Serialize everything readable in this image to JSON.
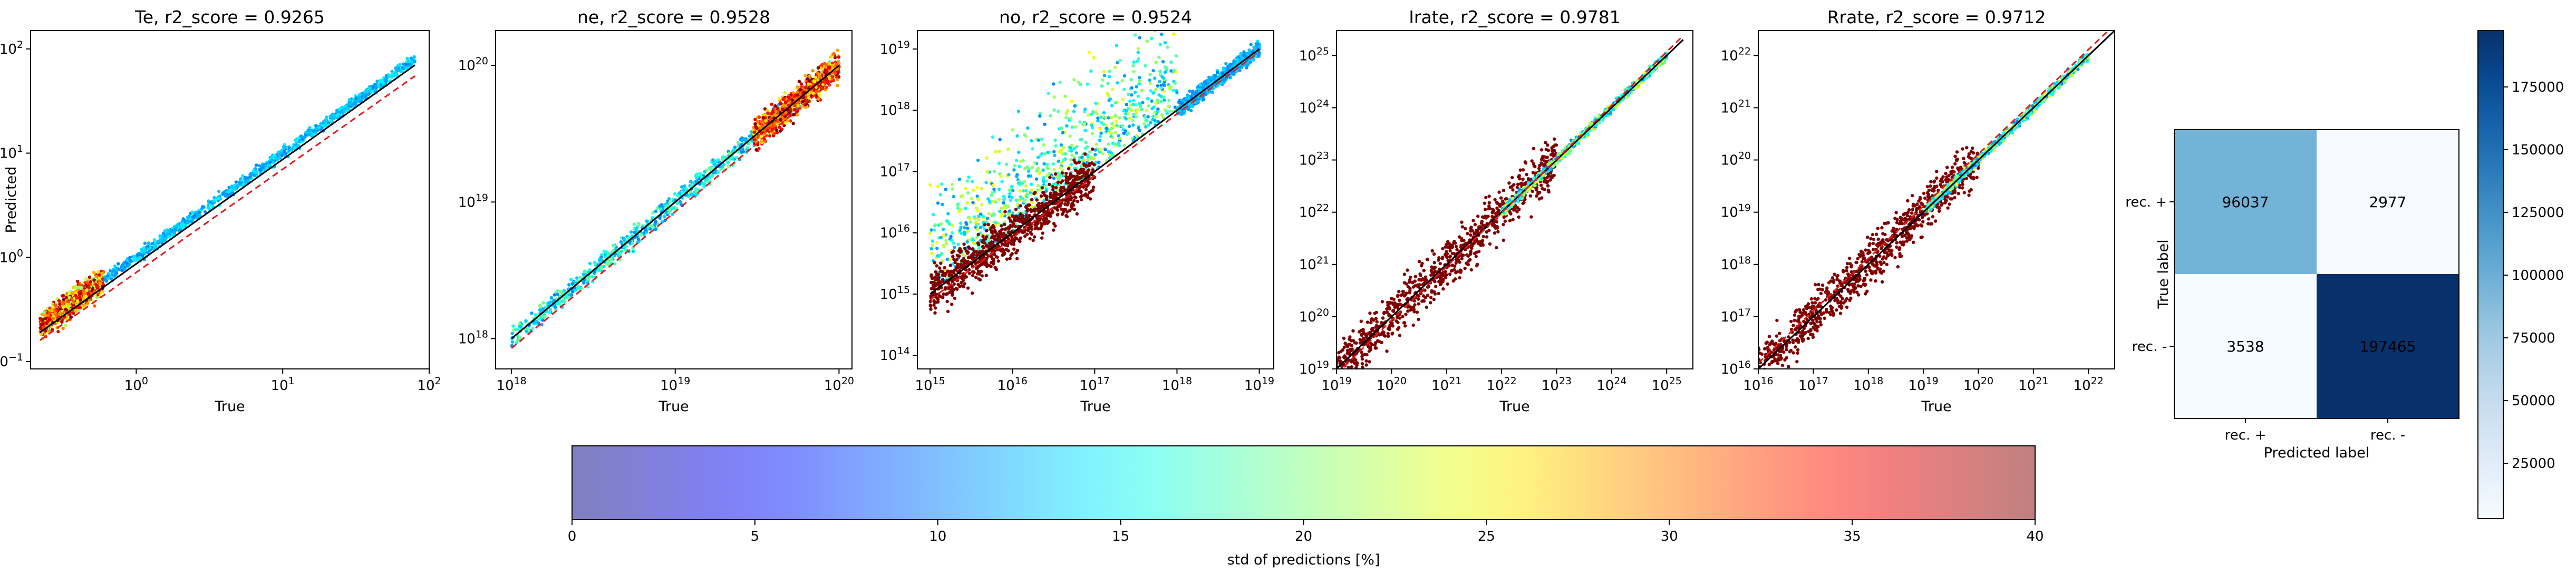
{
  "figure": {
    "colorbar_label": "std of predictions [%]",
    "colorbar_ticks": [
      "0",
      "5",
      "10",
      "15",
      "20",
      "25",
      "30",
      "35",
      "40"
    ],
    "colorbar_range": [
      0,
      40
    ],
    "colormap": "jet",
    "colormap_alpha": 0.5
  },
  "chart_data": [
    {
      "type": "scatter",
      "title": "Te, r2_score = 0.9265",
      "xlabel": "True",
      "ylabel": "Predicted",
      "xscale": "log",
      "yscale": "log",
      "xlim": [
        0.19,
        100
      ],
      "ylim": [
        0.085,
        150
      ],
      "x_ticks": [
        {
          "base": "10",
          "exp": "0",
          "value": 1
        },
        {
          "base": "10",
          "exp": "1",
          "value": 10
        },
        {
          "base": "10",
          "exp": "2",
          "value": 100
        }
      ],
      "y_ticks": [
        {
          "base": "10",
          "exp": "−1",
          "value": 0.1
        },
        {
          "base": "10",
          "exp": "0",
          "value": 1
        },
        {
          "base": "10",
          "exp": "1",
          "value": 10
        },
        {
          "base": "10",
          "exp": "2",
          "value": 100
        }
      ],
      "identity_line": {
        "from": [
          0.22,
          0.19
        ],
        "to": [
          80,
          70
        ],
        "color": "#000000"
      },
      "offset_line": {
        "from": [
          0.22,
          0.16
        ],
        "to": [
          80,
          55
        ],
        "color": "#e31a1c"
      },
      "cloud": [
        {
          "x_range": [
            0.22,
            0.6
          ],
          "log_spread": 0.12,
          "std_range": [
            20,
            40
          ]
        },
        {
          "x_range": [
            0.6,
            80
          ],
          "log_spread": 0.05,
          "std_range": [
            10,
            15
          ]
        }
      ]
    },
    {
      "type": "scatter",
      "title": "ne, r2_score = 0.9528",
      "xlabel": "True",
      "ylabel": "",
      "xscale": "log",
      "yscale": "log",
      "xlim": [
        8e+17,
        1.2e+20
      ],
      "ylim": [
        6e+17,
        1.8e+20
      ],
      "x_ticks": [
        {
          "base": "10",
          "exp": "18",
          "value": 1e+18
        },
        {
          "base": "10",
          "exp": "19",
          "value": 1e+19
        },
        {
          "base": "10",
          "exp": "20",
          "value": 1e+20
        }
      ],
      "y_ticks": [
        {
          "base": "10",
          "exp": "18",
          "value": 1e+18
        },
        {
          "base": "10",
          "exp": "19",
          "value": 1e+19
        },
        {
          "base": "10",
          "exp": "20",
          "value": 1e+20
        }
      ],
      "identity_line": {
        "from": [
          1e+18,
          1e+18
        ],
        "to": [
          1e+20,
          1e+20
        ],
        "color": "#000000"
      },
      "offset_line": {
        "from": [
          1e+18,
          8.5e+17
        ],
        "to": [
          1e+20,
          8.5e+19
        ],
        "color": "#e31a1c"
      },
      "cloud": [
        {
          "x_range": [
            1e+18,
            1e+20
          ],
          "log_spread": 0.07,
          "std_range": [
            10,
            20
          ]
        },
        {
          "x_range": [
            3e+19,
            1e+20
          ],
          "log_spread": 0.1,
          "std_range": [
            25,
            40
          ]
        }
      ]
    },
    {
      "type": "scatter",
      "title": "no, r2_score = 0.9524",
      "xlabel": "True",
      "ylabel": "",
      "xscale": "log",
      "yscale": "log",
      "xlim": [
        700000000000000.0,
        1.5e+19
      ],
      "ylim": [
        60000000000000.0,
        2e+19
      ],
      "x_ticks": [
        {
          "base": "10",
          "exp": "15",
          "value": 1000000000000000.0
        },
        {
          "base": "10",
          "exp": "16",
          "value": 1e+16
        },
        {
          "base": "10",
          "exp": "17",
          "value": 1e+17
        },
        {
          "base": "10",
          "exp": "18",
          "value": 1e+18
        },
        {
          "base": "10",
          "exp": "19",
          "value": 1e+19
        }
      ],
      "y_ticks": [
        {
          "base": "10",
          "exp": "14",
          "value": 100000000000000.0
        },
        {
          "base": "10",
          "exp": "15",
          "value": 1000000000000000.0
        },
        {
          "base": "10",
          "exp": "16",
          "value": 1e+16
        },
        {
          "base": "10",
          "exp": "17",
          "value": 1e+17
        },
        {
          "base": "10",
          "exp": "18",
          "value": 1e+18
        },
        {
          "base": "10",
          "exp": "19",
          "value": 1e+19
        }
      ],
      "identity_line": {
        "from": [
          1000000000000000.0,
          1000000000000000.0
        ],
        "to": [
          1e+19,
          1e+19
        ],
        "color": "#000000"
      },
      "offset_line": {
        "from": [
          1000000000000000.0,
          800000000000000.0
        ],
        "to": [
          1e+19,
          9e+18
        ],
        "color": "#e31a1c"
      },
      "cloud": [
        {
          "x_range": [
            1000000000000000.0,
            1e+18
          ],
          "log_spread": 0.9,
          "std_range": [
            10,
            25
          ],
          "upper_only": true
        },
        {
          "x_range": [
            1000000000000000.0,
            1e+17
          ],
          "log_spread": 0.35,
          "std_range": [
            38,
            40
          ]
        },
        {
          "x_range": [
            1e+18,
            1e+19
          ],
          "log_spread": 0.12,
          "std_range": [
            10,
            14
          ]
        }
      ]
    },
    {
      "type": "scatter",
      "title": "Irate, r2_score = 0.9781",
      "xlabel": "True",
      "ylabel": "",
      "xscale": "log",
      "yscale": "log",
      "xlim": [
        1e+19,
        3e+25
      ],
      "ylim": [
        1e+19,
        3e+25
      ],
      "x_ticks": [
        {
          "base": "10",
          "exp": "19",
          "value": 1e+19
        },
        {
          "base": "10",
          "exp": "20",
          "value": 1e+20
        },
        {
          "base": "10",
          "exp": "21",
          "value": 1e+21
        },
        {
          "base": "10",
          "exp": "22",
          "value": 1e+22
        },
        {
          "base": "10",
          "exp": "23",
          "value": 1e+23
        },
        {
          "base": "10",
          "exp": "24",
          "value": 1e+24
        },
        {
          "base": "10",
          "exp": "25",
          "value": 1e+25
        }
      ],
      "y_ticks": [
        {
          "base": "10",
          "exp": "19",
          "value": 1e+19
        },
        {
          "base": "10",
          "exp": "20",
          "value": 1e+20
        },
        {
          "base": "10",
          "exp": "21",
          "value": 1e+21
        },
        {
          "base": "10",
          "exp": "22",
          "value": 1e+22
        },
        {
          "base": "10",
          "exp": "23",
          "value": 1e+23
        },
        {
          "base": "10",
          "exp": "24",
          "value": 1e+24
        },
        {
          "base": "10",
          "exp": "25",
          "value": 1e+25
        }
      ],
      "identity_line": {
        "from": [
          1e+19,
          1e+19
        ],
        "to": [
          2e+25,
          2e+25
        ],
        "color": "#000000"
      },
      "offset_line": {
        "from": [
          1e+19,
          8e+18
        ],
        "to": [
          2e+25,
          2.4e+25
        ],
        "color": "#e31a1c"
      },
      "cloud": [
        {
          "x_range": [
            1e+19,
            1e+23
          ],
          "log_spread": 0.45,
          "std_range": [
            39,
            40
          ]
        },
        {
          "x_range": [
            1e+22,
            1e+25
          ],
          "log_spread": 0.08,
          "std_range": [
            10,
            25
          ]
        }
      ]
    },
    {
      "type": "scatter",
      "title": "Rrate, r2_score = 0.9712",
      "xlabel": "True",
      "ylabel": "",
      "xscale": "log",
      "yscale": "log",
      "xlim": [
        1e+16,
        3e+22
      ],
      "ylim": [
        1e+16,
        3e+22
      ],
      "x_ticks": [
        {
          "base": "10",
          "exp": "16",
          "value": 1e+16
        },
        {
          "base": "10",
          "exp": "17",
          "value": 1e+17
        },
        {
          "base": "10",
          "exp": "18",
          "value": 1e+18
        },
        {
          "base": "10",
          "exp": "19",
          "value": 1e+19
        },
        {
          "base": "10",
          "exp": "20",
          "value": 1e+20
        },
        {
          "base": "10",
          "exp": "21",
          "value": 1e+21
        },
        {
          "base": "10",
          "exp": "22",
          "value": 1e+22
        }
      ],
      "y_ticks": [
        {
          "base": "10",
          "exp": "16",
          "value": 1e+16
        },
        {
          "base": "10",
          "exp": "17",
          "value": 1e+17
        },
        {
          "base": "10",
          "exp": "18",
          "value": 1e+18
        },
        {
          "base": "10",
          "exp": "19",
          "value": 1e+19
        },
        {
          "base": "10",
          "exp": "20",
          "value": 1e+20
        },
        {
          "base": "10",
          "exp": "21",
          "value": 1e+21
        },
        {
          "base": "10",
          "exp": "22",
          "value": 1e+22
        }
      ],
      "identity_line": {
        "from": [
          1e+16,
          1e+16
        ],
        "to": [
          3e+22,
          3e+22
        ],
        "color": "#000000"
      },
      "offset_line": {
        "from": [
          1e+16,
          1.3e+16
        ],
        "to": [
          3e+22,
          3.9e+22
        ],
        "color": "#e31a1c"
      },
      "cloud": [
        {
          "x_range": [
            1e+16,
            1e+20
          ],
          "log_spread": 0.45,
          "std_range": [
            39,
            40
          ]
        },
        {
          "x_range": [
            1e+19,
            1e+22
          ],
          "log_spread": 0.08,
          "std_range": [
            10,
            25
          ]
        }
      ]
    },
    {
      "type": "heatmap",
      "title": "",
      "xlabel": "Predicted label",
      "ylabel": "True label",
      "x_categories": [
        "rec. +",
        "rec. -"
      ],
      "y_categories": [
        "rec. +",
        "rec. -"
      ],
      "values": [
        [
          96037,
          2977
        ],
        [
          3538,
          197465
        ]
      ],
      "colormap": "Blues",
      "colorbar_range": [
        2977,
        197465
      ],
      "colorbar_ticks": [
        {
          "label": "25000",
          "value": 25000
        },
        {
          "label": "50000",
          "value": 50000
        },
        {
          "label": "75000",
          "value": 75000
        },
        {
          "label": "100000",
          "value": 100000
        },
        {
          "label": "125000",
          "value": 125000
        },
        {
          "label": "150000",
          "value": 150000
        },
        {
          "label": "175000",
          "value": 175000
        }
      ]
    }
  ]
}
